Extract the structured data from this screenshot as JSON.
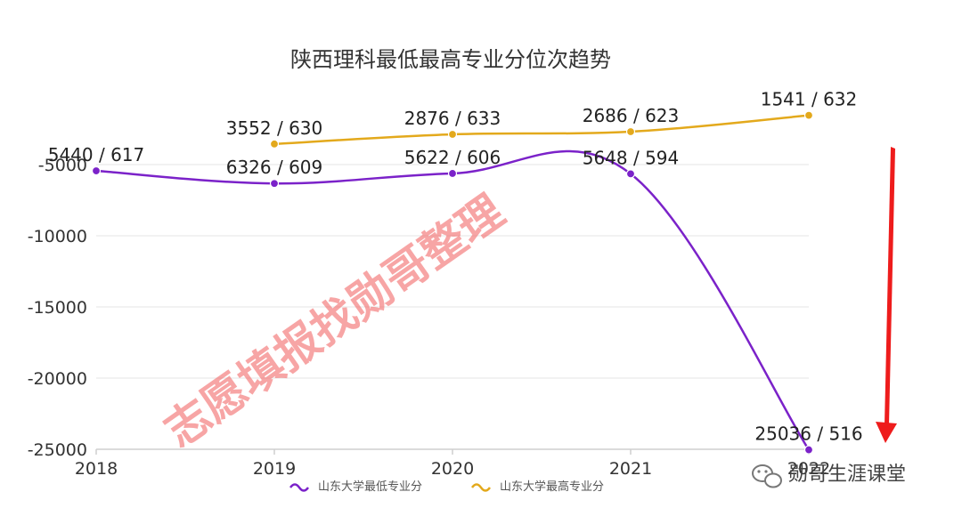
{
  "chart_data": {
    "type": "line",
    "title": "陕西理科最低最高专业分位次趋势",
    "categories": [
      "2018",
      "2019",
      "2020",
      "2021",
      "2022"
    ],
    "xtick_labels": [
      "2018",
      "2019",
      "2020",
      "2021",
      "2022"
    ],
    "ylim": [
      -25000,
      -5000
    ],
    "yticks": [
      -5000,
      -10000,
      -15000,
      -20000,
      -25000
    ],
    "ytick_labels": [
      "-5000",
      "-10000",
      "-15000",
      "-20000",
      "-25000"
    ],
    "grid": true,
    "legend_position": "bottom",
    "series": [
      {
        "name": "山东大学最低专业分",
        "color": "#7b22c9",
        "values": [
          -5440,
          -6326,
          -5622,
          -5648,
          -25036
        ],
        "labels": [
          "5440 / 617",
          "6326 / 609",
          "5622 / 606",
          "5648 / 594",
          "25036 / 516"
        ]
      },
      {
        "name": "山东大学最高专业分",
        "color": "#e3a91c",
        "values": [
          null,
          -3552,
          -2876,
          -2686,
          -1541
        ],
        "labels": [
          "",
          "3552 / 630",
          "2876 / 633",
          "2686 / 623",
          "1541 / 632"
        ]
      }
    ]
  },
  "watermark": "志愿填报找勋哥整理",
  "brand": {
    "text": "勋哥生涯课堂",
    "icon": "wechat-icon"
  },
  "annotation": {
    "color": "#ee1c1c",
    "icon": "red-down-arrow"
  }
}
